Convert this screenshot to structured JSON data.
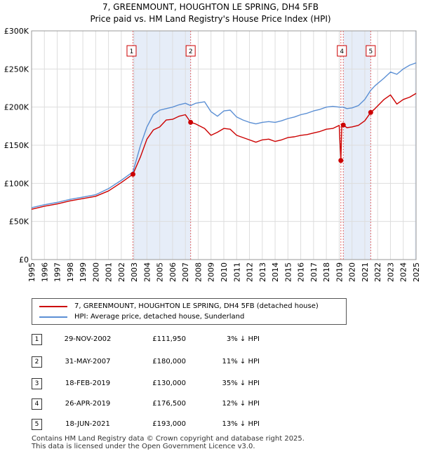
{
  "title_line1": "7, GREENMOUNT, HOUGHTON LE SPRING, DH4 5FB",
  "title_line2": "Price paid vs. HM Land Registry's House Price Index (HPI)",
  "chart_data": {
    "type": "line",
    "xlim": [
      1995,
      2025
    ],
    "ylim": [
      0,
      300000
    ],
    "y_ticks": [
      0,
      50000,
      100000,
      150000,
      200000,
      250000,
      300000
    ],
    "y_tick_labels": [
      "£0",
      "£50K",
      "£100K",
      "£150K",
      "£200K",
      "£250K",
      "£300K"
    ],
    "x_ticks": [
      1995,
      1996,
      1997,
      1998,
      1999,
      2000,
      2001,
      2002,
      2003,
      2004,
      2005,
      2006,
      2007,
      2008,
      2009,
      2010,
      2011,
      2012,
      2013,
      2014,
      2015,
      2016,
      2017,
      2018,
      2019,
      2020,
      2021,
      2022,
      2023,
      2024,
      2025
    ],
    "x_tick_labels": [
      "1995",
      "1996",
      "1997",
      "1998",
      "1999",
      "2000",
      "2001",
      "2002",
      "2003",
      "2004",
      "2005",
      "2006",
      "2007",
      "2008",
      "2009",
      "2010",
      "2011",
      "2012",
      "2013",
      "2014",
      "2015",
      "2016",
      "2017",
      "2018",
      "2019",
      "2020",
      "2021",
      "2022",
      "2023",
      "2024",
      "2025"
    ],
    "grid": true,
    "legend_position": "below",
    "series": [
      {
        "name": "7, GREENMOUNT, HOUGHTON LE SPRING, DH4 5FB (detached house)",
        "color": "#cc0000",
        "points": [
          [
            1995.0,
            66000
          ],
          [
            1996.0,
            70000
          ],
          [
            1997.0,
            73000
          ],
          [
            1998.0,
            77000
          ],
          [
            1999.0,
            80000
          ],
          [
            2000.0,
            83000
          ],
          [
            2001.0,
            90000
          ],
          [
            2002.0,
            101000
          ],
          [
            2002.91,
            111950
          ],
          [
            2003.5,
            135000
          ],
          [
            2004.0,
            158000
          ],
          [
            2004.5,
            170000
          ],
          [
            2005.0,
            174000
          ],
          [
            2005.5,
            183000
          ],
          [
            2006.0,
            184000
          ],
          [
            2006.5,
            188000
          ],
          [
            2007.0,
            190000
          ],
          [
            2007.41,
            180000
          ],
          [
            2007.8,
            178000
          ],
          [
            2008.5,
            172000
          ],
          [
            2009.0,
            163000
          ],
          [
            2009.5,
            167000
          ],
          [
            2010.0,
            172000
          ],
          [
            2010.5,
            171000
          ],
          [
            2011.0,
            163000
          ],
          [
            2011.5,
            160000
          ],
          [
            2012.0,
            157000
          ],
          [
            2012.5,
            154000
          ],
          [
            2013.0,
            157000
          ],
          [
            2013.5,
            158000
          ],
          [
            2014.0,
            155000
          ],
          [
            2014.5,
            157000
          ],
          [
            2015.0,
            160000
          ],
          [
            2015.5,
            161000
          ],
          [
            2016.0,
            163000
          ],
          [
            2016.5,
            164000
          ],
          [
            2017.0,
            166000
          ],
          [
            2017.5,
            168000
          ],
          [
            2018.0,
            171000
          ],
          [
            2018.5,
            172000
          ],
          [
            2019.0,
            176000
          ],
          [
            2019.13,
            130000
          ],
          [
            2019.2,
            176000
          ],
          [
            2019.32,
            176500
          ],
          [
            2019.6,
            173000
          ],
          [
            2020.0,
            174000
          ],
          [
            2020.5,
            176000
          ],
          [
            2021.0,
            182000
          ],
          [
            2021.46,
            193000
          ],
          [
            2021.8,
            198000
          ],
          [
            2022.5,
            210000
          ],
          [
            2023.0,
            216000
          ],
          [
            2023.5,
            204000
          ],
          [
            2024.0,
            210000
          ],
          [
            2024.5,
            213000
          ],
          [
            2025.0,
            218000
          ]
        ]
      },
      {
        "name": "HPI: Average price, detached house, Sunderland",
        "color": "#5b8fd4",
        "points": [
          [
            1995.0,
            68000
          ],
          [
            1996.0,
            72000
          ],
          [
            1997.0,
            75000
          ],
          [
            1998.0,
            79000
          ],
          [
            1999.0,
            82000
          ],
          [
            2000.0,
            85000
          ],
          [
            2001.0,
            93000
          ],
          [
            2002.0,
            104000
          ],
          [
            2002.91,
            115000
          ],
          [
            2003.5,
            150000
          ],
          [
            2004.0,
            174000
          ],
          [
            2004.5,
            190000
          ],
          [
            2005.0,
            196000
          ],
          [
            2005.5,
            198000
          ],
          [
            2006.0,
            200000
          ],
          [
            2006.5,
            203000
          ],
          [
            2007.0,
            205000
          ],
          [
            2007.41,
            202000
          ],
          [
            2007.8,
            205000
          ],
          [
            2008.5,
            207000
          ],
          [
            2009.0,
            194000
          ],
          [
            2009.5,
            188000
          ],
          [
            2010.0,
            195000
          ],
          [
            2010.5,
            196000
          ],
          [
            2011.0,
            187000
          ],
          [
            2011.5,
            183000
          ],
          [
            2012.0,
            180000
          ],
          [
            2012.5,
            178000
          ],
          [
            2013.0,
            180000
          ],
          [
            2013.5,
            181000
          ],
          [
            2014.0,
            180000
          ],
          [
            2014.5,
            182000
          ],
          [
            2015.0,
            185000
          ],
          [
            2015.5,
            187000
          ],
          [
            2016.0,
            190000
          ],
          [
            2016.5,
            192000
          ],
          [
            2017.0,
            195000
          ],
          [
            2017.5,
            197000
          ],
          [
            2018.0,
            200000
          ],
          [
            2018.5,
            201000
          ],
          [
            2019.0,
            200000
          ],
          [
            2019.13,
            200000
          ],
          [
            2019.32,
            200000
          ],
          [
            2019.6,
            198000
          ],
          [
            2020.0,
            199000
          ],
          [
            2020.5,
            202000
          ],
          [
            2021.0,
            210000
          ],
          [
            2021.46,
            222000
          ],
          [
            2021.8,
            228000
          ],
          [
            2022.5,
            238000
          ],
          [
            2023.0,
            246000
          ],
          [
            2023.5,
            243000
          ],
          [
            2024.0,
            250000
          ],
          [
            2024.5,
            255000
          ],
          [
            2025.0,
            258000
          ]
        ]
      }
    ],
    "sales": [
      {
        "label": "1",
        "x": 2002.91,
        "y": 111950
      },
      {
        "label": "2",
        "x": 2007.41,
        "y": 180000
      },
      {
        "label": "3",
        "x": 2019.13,
        "y": 130000
      },
      {
        "label": "4",
        "x": 2019.32,
        "y": 176500
      },
      {
        "label": "5",
        "x": 2021.46,
        "y": 193000
      }
    ],
    "boxed_labels": [
      {
        "label": "1",
        "x": 2002.91
      },
      {
        "label": "2",
        "x": 2007.41
      },
      {
        "label": "4",
        "x": 2019.32
      },
      {
        "label": "5",
        "x": 2021.46
      }
    ],
    "shaded_spans": [
      [
        2002.91,
        2007.41
      ],
      [
        2019.32,
        2021.46
      ],
      [
        2024.9,
        2025.0
      ]
    ]
  },
  "legend": [
    {
      "label": "7, GREENMOUNT, HOUGHTON LE SPRING, DH4 5FB (detached house)",
      "color": "#cc0000"
    },
    {
      "label": "HPI: Average price, detached house, Sunderland",
      "color": "#5b8fd4"
    }
  ],
  "transactions": [
    {
      "num": "1",
      "date": "29-NOV-2002",
      "price": "£111,950",
      "pct": "3% ↓ HPI"
    },
    {
      "num": "2",
      "date": "31-MAY-2007",
      "price": "£180,000",
      "pct": "11% ↓ HPI"
    },
    {
      "num": "3",
      "date": "18-FEB-2019",
      "price": "£130,000",
      "pct": "35% ↓ HPI"
    },
    {
      "num": "4",
      "date": "26-APR-2019",
      "price": "£176,500",
      "pct": "12% ↓ HPI"
    },
    {
      "num": "5",
      "date": "18-JUN-2021",
      "price": "£193,000",
      "pct": "13% ↓ HPI"
    }
  ],
  "footer": "Contains HM Land Registry data © Crown copyright and database right 2025.\nThis data is licensed under the Open Government Licence v3.0."
}
